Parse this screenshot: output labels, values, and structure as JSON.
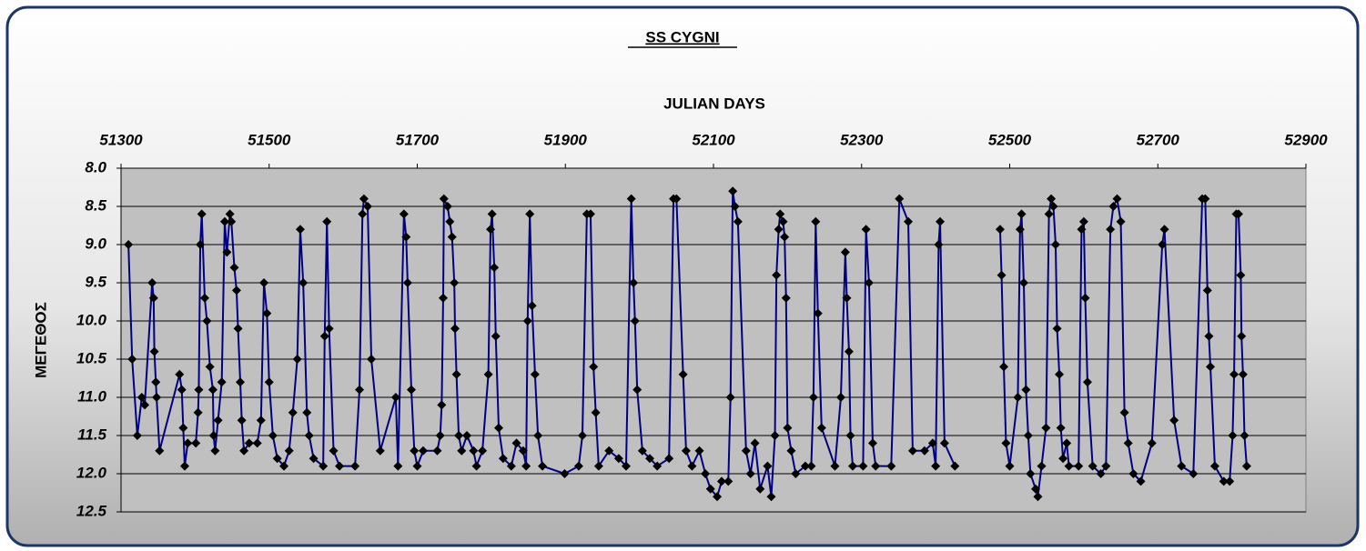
{
  "chart_data": {
    "type": "line",
    "title": "SS CYGNI",
    "x_label": "JULIAN DAYS",
    "y_label": "ΜΕΓΕΘΟΣ",
    "x": [
      51310,
      51315,
      51322,
      51328,
      51332,
      51342,
      51344,
      51345,
      51347,
      51348,
      51352,
      51379,
      51382,
      51384,
      51386,
      51390,
      51401,
      51404,
      51405,
      51407,
      51409,
      51413,
      51416,
      51420,
      51424,
      51425,
      51427,
      51431,
      51436,
      51440,
      51443,
      51447,
      51449,
      51453,
      51456,
      51458,
      51461,
      51463,
      51466,
      51473,
      51484,
      51489,
      51493,
      51497,
      51500,
      51505,
      51511,
      51520,
      51527,
      51532,
      51538,
      51542,
      51546,
      51551,
      51554,
      51560,
      51573,
      51575,
      51578,
      51581,
      51587,
      51595,
      51616,
      51622,
      51626,
      51628,
      51633,
      51638,
      51650,
      51671,
      51674,
      51682,
      51685,
      51687,
      51692,
      51696,
      51700,
      51708,
      51727,
      51731,
      51733,
      51735,
      51736,
      51741,
      51744,
      51747,
      51750,
      51751,
      51753,
      51756,
      51760,
      51767,
      51776,
      51780,
      51788,
      51796,
      51799,
      51801,
      51804,
      51806,
      51810,
      51816,
      51827,
      51834,
      51843,
      51847,
      51849,
      51852,
      51855,
      51859,
      51863,
      51869,
      51899,
      51918,
      51923,
      51929,
      51934,
      51938,
      51941,
      51945,
      51959,
      51972,
      51982,
      51989,
      51992,
      51994,
      51997,
      52004,
      52014,
      52024,
      52040,
      52046,
      52050,
      52059,
      52063,
      52071,
      52081,
      52089,
      52096,
      52105,
      52111,
      52120,
      52123,
      52126,
      52129,
      52133,
      52144,
      52150,
      52156,
      52163,
      52173,
      52178,
      52183,
      52185,
      52188,
      52190,
      52194,
      52196,
      52198,
      52200,
      52205,
      52211,
      52224,
      52232,
      52235,
      52238,
      52241,
      52246,
      52264,
      52272,
      52278,
      52280,
      52283,
      52285,
      52288,
      52302,
      52306,
      52310,
      52315,
      52319,
      52340,
      52351,
      52363,
      52369,
      52385,
      52396,
      52400,
      52404,
      52406,
      52412,
      52426,
      52455,
      52487,
      52489,
      52492,
      52495,
      52500,
      52511,
      52514,
      52516,
      52519,
      52522,
      52525,
      52528,
      52535,
      52538,
      52543,
      52549,
      52553,
      52556,
      52559,
      52562,
      52564,
      52567,
      52569,
      52572,
      52577,
      52580,
      52593,
      52597,
      52600,
      52602,
      52605,
      52612,
      52623,
      52630,
      52636,
      52640,
      52645,
      52650,
      52655,
      52660,
      52667,
      52677,
      52692,
      52706,
      52709,
      52722,
      52732,
      52748,
      52760,
      52764,
      52767,
      52769,
      52771,
      52777,
      52789,
      52797,
      52801,
      52803,
      52806,
      52809,
      52812,
      52813,
      52815,
      52817,
      52820
    ],
    "series": [
      {
        "color": "#000080",
        "marker_color": "#000000",
        "values": [
          9.0,
          10.5,
          11.5,
          11.0,
          11.1,
          9.5,
          9.7,
          10.4,
          10.8,
          11.0,
          11.7,
          10.7,
          10.9,
          11.4,
          11.9,
          11.6,
          11.6,
          11.2,
          10.9,
          9.0,
          8.6,
          9.7,
          10.0,
          10.6,
          10.9,
          11.5,
          11.7,
          11.3,
          10.8,
          8.7,
          9.1,
          8.6,
          8.7,
          9.3,
          9.6,
          10.1,
          10.8,
          11.3,
          11.7,
          11.6,
          11.6,
          11.3,
          9.5,
          9.9,
          10.8,
          11.5,
          11.8,
          11.9,
          11.7,
          11.2,
          10.5,
          8.8,
          9.5,
          11.2,
          11.5,
          11.8,
          11.9,
          10.2,
          8.7,
          10.1,
          11.7,
          11.9,
          11.9,
          10.9,
          8.6,
          8.4,
          8.5,
          10.5,
          11.7,
          11.0,
          11.9,
          8.6,
          8.9,
          9.5,
          10.9,
          11.7,
          11.9,
          11.7,
          11.7,
          11.5,
          11.1,
          9.7,
          8.4,
          8.5,
          8.7,
          8.9,
          9.5,
          10.1,
          10.7,
          11.5,
          11.7,
          11.5,
          11.7,
          11.9,
          11.7,
          10.7,
          8.8,
          8.6,
          9.3,
          10.2,
          11.4,
          11.8,
          11.9,
          11.6,
          11.7,
          11.9,
          10.0,
          8.6,
          9.8,
          10.7,
          11.5,
          11.9,
          12.0,
          11.9,
          11.5,
          8.6,
          8.6,
          10.6,
          11.2,
          11.9,
          11.7,
          11.8,
          11.9,
          8.4,
          9.5,
          10.0,
          10.9,
          11.7,
          11.8,
          11.9,
          11.8,
          8.4,
          8.4,
          10.7,
          11.7,
          11.9,
          11.7,
          12.0,
          12.2,
          12.3,
          12.1,
          12.1,
          11.0,
          8.3,
          8.5,
          8.7,
          11.7,
          12.0,
          11.6,
          12.2,
          11.9,
          12.3,
          11.5,
          9.4,
          8.8,
          8.6,
          8.7,
          8.9,
          9.7,
          11.4,
          11.7,
          12.0,
          11.9,
          11.9,
          11.0,
          8.7,
          9.9,
          11.4,
          11.9,
          11.0,
          9.1,
          9.7,
          10.4,
          11.5,
          11.9,
          11.9,
          8.8,
          9.5,
          11.6,
          11.9,
          11.9,
          8.4,
          8.7,
          11.7,
          11.7,
          11.6,
          11.9,
          9.0,
          8.7,
          11.6,
          11.9,
          null,
          8.8,
          9.4,
          10.6,
          11.6,
          11.9,
          11.0,
          8.8,
          8.6,
          9.5,
          10.9,
          11.5,
          12.0,
          12.2,
          12.3,
          11.9,
          11.4,
          8.6,
          8.4,
          8.5,
          9.0,
          10.1,
          10.7,
          11.4,
          11.8,
          11.6,
          11.9,
          11.9,
          8.8,
          8.7,
          9.7,
          10.8,
          11.9,
          12.0,
          11.9,
          8.8,
          8.5,
          8.4,
          8.7,
          11.2,
          11.6,
          12.0,
          12.1,
          11.6,
          9.0,
          8.8,
          11.3,
          11.9,
          12.0,
          8.4,
          8.4,
          9.6,
          10.2,
          10.6,
          11.9,
          12.1,
          12.1,
          11.5,
          10.7,
          8.6,
          8.6,
          9.4,
          10.2,
          10.7,
          11.5,
          11.9
        ]
      }
    ],
    "xlim": [
      51300,
      52900
    ],
    "xticks": [
      51300,
      51500,
      51700,
      51900,
      52100,
      52300,
      52500,
      52700,
      52900
    ],
    "x_axis_position": "top",
    "ylim": [
      8,
      12.5
    ],
    "y_inverted": true,
    "yticks": [
      {
        "value": 8,
        "label": "8.0"
      },
      8.5,
      {
        "value": 9,
        "label": "9.0"
      },
      9.5,
      {
        "value": 10,
        "label": "10.0"
      },
      10.5,
      {
        "value": 11,
        "label": "11.0"
      },
      11.5,
      {
        "value": 12,
        "label": "12.0"
      },
      12.5
    ],
    "grid": true,
    "plot_background": "#c0c0c0"
  }
}
